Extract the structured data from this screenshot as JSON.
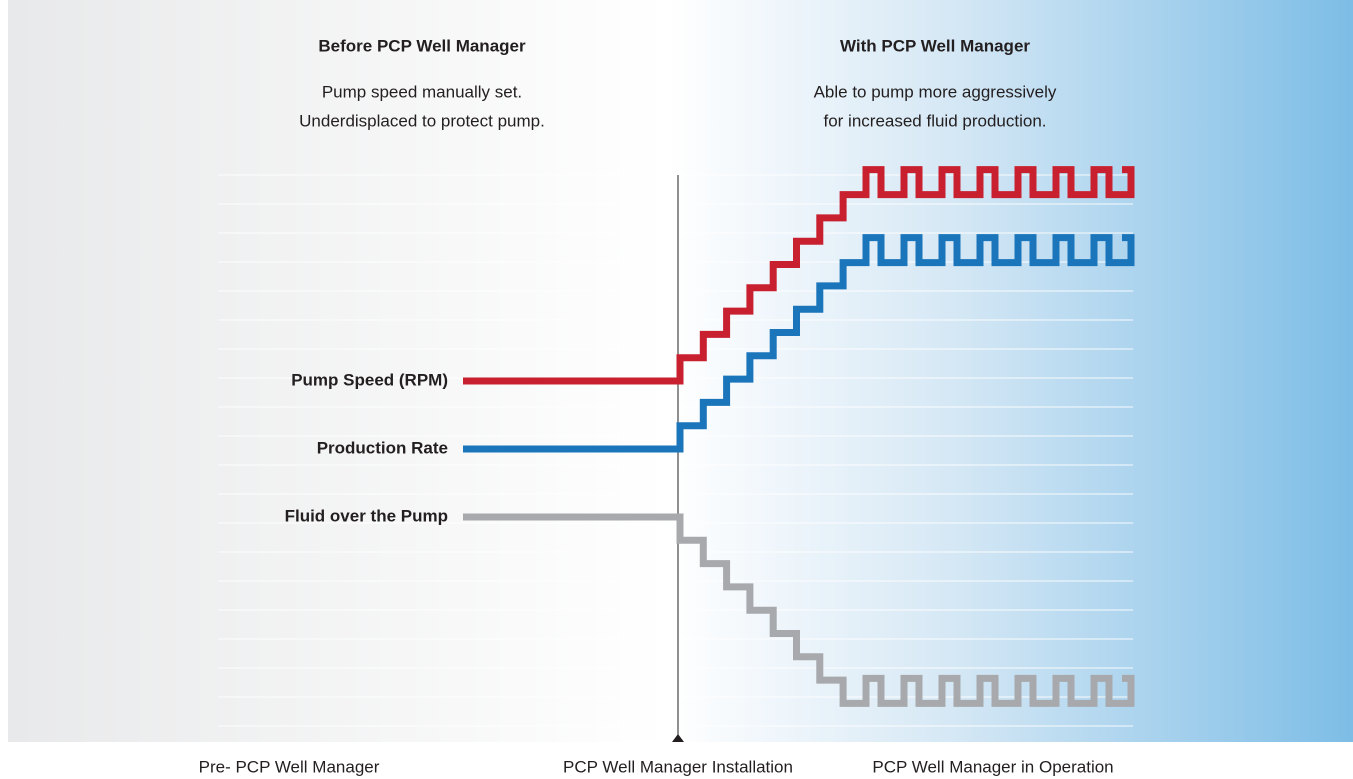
{
  "headers": {
    "before": {
      "title": "Before PCP Well Manager",
      "lines": [
        "Pump speed manually set.",
        "Underdisplaced to protect pump."
      ]
    },
    "with": {
      "title": "With PCP Well Manager",
      "lines": [
        "Able to pump more aggressively",
        "for increased fluid production."
      ]
    }
  },
  "legend": [
    "Pump Speed (RPM)",
    "Production Rate",
    "Fluid over the Pump"
  ],
  "phases": [
    "Pre- PCP Well Manager",
    "PCP Well Manager Installation",
    "PCP Well Manager in Operation"
  ]
}
